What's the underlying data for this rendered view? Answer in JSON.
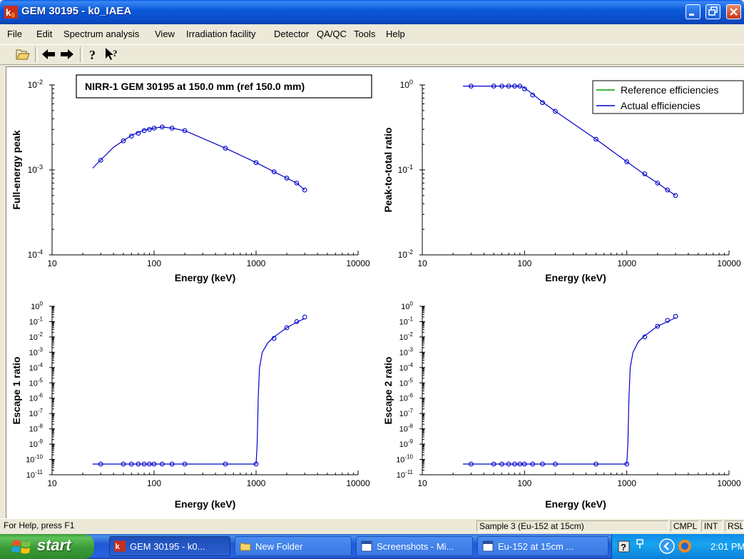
{
  "window": {
    "title": "GEM 30195 - k0_IAEA",
    "icon": "k0-app-icon"
  },
  "menu": [
    "File",
    "Edit",
    "Spectrum analysis",
    "View",
    "Irradiation facility",
    "Detector",
    "QA/QC",
    "Tools",
    "Help"
  ],
  "toolbar": {
    "buttons": [
      "open-folder-icon",
      "back-arrow-icon",
      "forward-arrow-icon",
      "help-icon",
      "context-help-icon"
    ]
  },
  "plot_annotation": "NIRR-1 GEM 30195 at 150.0 mm (ref 150.0 mm)",
  "legend": {
    "items": [
      {
        "label": "Reference efficiencies",
        "color": "#00A000"
      },
      {
        "label": "Actual efficiencies",
        "color": "#0000CC"
      }
    ]
  },
  "chart_data": [
    {
      "type": "line",
      "title": "",
      "xlabel": "Energy (keV)",
      "ylabel": "Full-energy peak",
      "xscale": "log",
      "yscale": "log",
      "xlim": [
        10,
        10000
      ],
      "ylim": [
        0.0001,
        0.01
      ],
      "x_ticks": [
        "10",
        "100",
        "1000",
        "10000"
      ],
      "y_ticks": [
        "10^-4",
        "10^-3",
        "10^-2"
      ],
      "curve": [
        [
          25,
          0.00105
        ],
        [
          40,
          0.00185
        ],
        [
          60,
          0.00255
        ],
        [
          80,
          0.00295
        ],
        [
          100,
          0.0031
        ],
        [
          120,
          0.0032
        ],
        [
          150,
          0.0031
        ],
        [
          200,
          0.0029
        ],
        [
          500,
          0.0018
        ],
        [
          1000,
          0.00122
        ],
        [
          1500,
          0.00095
        ],
        [
          2000,
          0.0008
        ],
        [
          2500,
          0.0007
        ],
        [
          3000,
          0.00058
        ]
      ],
      "points": [
        [
          30,
          0.0013
        ],
        [
          50,
          0.0022
        ],
        [
          60,
          0.0025
        ],
        [
          70,
          0.0027
        ],
        [
          80,
          0.0029
        ],
        [
          90,
          0.003
        ],
        [
          100,
          0.0031
        ],
        [
          120,
          0.0032
        ],
        [
          150,
          0.0031
        ],
        [
          200,
          0.0029
        ],
        [
          500,
          0.0018
        ],
        [
          1000,
          0.00122
        ],
        [
          1500,
          0.00095
        ],
        [
          2000,
          0.0008
        ],
        [
          2500,
          0.0007
        ],
        [
          3000,
          0.00058
        ]
      ],
      "series": [
        {
          "name": "Actual efficiencies",
          "color": "#0000CC"
        }
      ]
    },
    {
      "type": "line",
      "title": "",
      "xlabel": "Energy (keV)",
      "ylabel": "Peak-to-total ratio",
      "xscale": "log",
      "yscale": "log",
      "xlim": [
        10,
        10000
      ],
      "ylim": [
        0.01,
        1
      ],
      "x_ticks": [
        "10",
        "100",
        "1000",
        "10000"
      ],
      "y_ticks": [
        "10^-2",
        "10^-1",
        "10^0"
      ],
      "curve": [
        [
          25,
          0.97
        ],
        [
          90,
          0.97
        ],
        [
          100,
          0.92
        ],
        [
          120,
          0.78
        ],
        [
          150,
          0.63
        ],
        [
          200,
          0.49
        ],
        [
          500,
          0.23
        ],
        [
          1000,
          0.125
        ],
        [
          1500,
          0.088
        ],
        [
          2000,
          0.07
        ],
        [
          2500,
          0.058
        ],
        [
          3000,
          0.05
        ]
      ],
      "points": [
        [
          30,
          0.97
        ],
        [
          50,
          0.97
        ],
        [
          60,
          0.97
        ],
        [
          70,
          0.97
        ],
        [
          80,
          0.97
        ],
        [
          90,
          0.97
        ],
        [
          100,
          0.9
        ],
        [
          120,
          0.76
        ],
        [
          150,
          0.62
        ],
        [
          200,
          0.49
        ],
        [
          500,
          0.23
        ],
        [
          1000,
          0.125
        ],
        [
          1500,
          0.09
        ],
        [
          2000,
          0.07
        ],
        [
          2500,
          0.058
        ],
        [
          3000,
          0.05
        ]
      ],
      "series": [
        {
          "name": "Actual efficiencies",
          "color": "#0000CC"
        }
      ]
    },
    {
      "type": "line",
      "title": "",
      "xlabel": "Energy (keV)",
      "ylabel": "Escape 1 ratio",
      "xscale": "log",
      "yscale": "log",
      "xlim": [
        10,
        10000
      ],
      "ylim": [
        1e-11,
        1
      ],
      "x_ticks": [
        "10",
        "100",
        "1000",
        "10000"
      ],
      "y_ticks": [
        "10^-11",
        "10^-10",
        "10^-9",
        "10^-8",
        "10^-7",
        "10^-6",
        "10^-5",
        "10^-4",
        "10^-3",
        "10^-2",
        "10^-1",
        "10^0"
      ],
      "curve": [
        [
          25,
          5e-11
        ],
        [
          1000,
          5e-11
        ],
        [
          1025,
          1e-09
        ],
        [
          1050,
          1e-06
        ],
        [
          1080,
          0.0001
        ],
        [
          1150,
          0.001
        ],
        [
          1300,
          0.004
        ],
        [
          1500,
          0.01
        ],
        [
          2000,
          0.04
        ],
        [
          2500,
          0.09
        ],
        [
          3000,
          0.16
        ]
      ],
      "points": [
        [
          30,
          5e-11
        ],
        [
          50,
          5e-11
        ],
        [
          60,
          5e-11
        ],
        [
          70,
          5e-11
        ],
        [
          80,
          5e-11
        ],
        [
          90,
          5e-11
        ],
        [
          100,
          5e-11
        ],
        [
          120,
          5e-11
        ],
        [
          150,
          5e-11
        ],
        [
          200,
          5e-11
        ],
        [
          500,
          5e-11
        ],
        [
          1000,
          5e-11
        ],
        [
          1500,
          0.008
        ],
        [
          2000,
          0.04
        ],
        [
          2500,
          0.1
        ],
        [
          3000,
          0.2
        ]
      ],
      "series": [
        {
          "name": "Actual efficiencies",
          "color": "#0000CC"
        }
      ]
    },
    {
      "type": "line",
      "title": "",
      "xlabel": "Energy (keV)",
      "ylabel": "Escape 2 ratio",
      "xscale": "log",
      "yscale": "log",
      "xlim": [
        10,
        10000
      ],
      "ylim": [
        1e-11,
        1
      ],
      "x_ticks": [
        "10",
        "100",
        "1000",
        "10000"
      ],
      "y_ticks": [
        "10^-11",
        "10^-10",
        "10^-9",
        "10^-8",
        "10^-7",
        "10^-6",
        "10^-5",
        "10^-4",
        "10^-3",
        "10^-2",
        "10^-1",
        "10^0"
      ],
      "curve": [
        [
          25,
          5e-11
        ],
        [
          1000,
          5e-11
        ],
        [
          1025,
          1e-09
        ],
        [
          1050,
          1e-06
        ],
        [
          1080,
          0.0001
        ],
        [
          1150,
          0.001
        ],
        [
          1300,
          0.005
        ],
        [
          1500,
          0.012
        ],
        [
          2000,
          0.05
        ],
        [
          2500,
          0.1
        ],
        [
          3000,
          0.18
        ]
      ],
      "points": [
        [
          30,
          5e-11
        ],
        [
          50,
          5e-11
        ],
        [
          60,
          5e-11
        ],
        [
          70,
          5e-11
        ],
        [
          80,
          5e-11
        ],
        [
          90,
          5e-11
        ],
        [
          100,
          5e-11
        ],
        [
          120,
          5e-11
        ],
        [
          150,
          5e-11
        ],
        [
          200,
          5e-11
        ],
        [
          500,
          5e-11
        ],
        [
          1000,
          5e-11
        ],
        [
          1500,
          0.01
        ],
        [
          2000,
          0.05
        ],
        [
          2500,
          0.12
        ],
        [
          3000,
          0.22
        ]
      ],
      "series": [
        {
          "name": "Actual efficiencies",
          "color": "#0000CC"
        }
      ]
    }
  ],
  "status": {
    "help": "For Help, press F1",
    "sample": "Sample 3 (Eu-152 at 15cm)",
    "indicators": [
      "CMPL",
      "INT",
      "RSL"
    ]
  },
  "taskbar": {
    "start": "start",
    "tasks": [
      {
        "label": "GEM 30195 - k0...",
        "icon": "k0-app-icon"
      },
      {
        "label": "New Folder",
        "icon": "folder-icon"
      },
      {
        "label": "Screenshots - Mi...",
        "icon": "word-doc-icon"
      },
      {
        "label": "Eu-152 at 15cm ...",
        "icon": "word-doc-icon"
      }
    ],
    "clock": "2:01 PM"
  }
}
